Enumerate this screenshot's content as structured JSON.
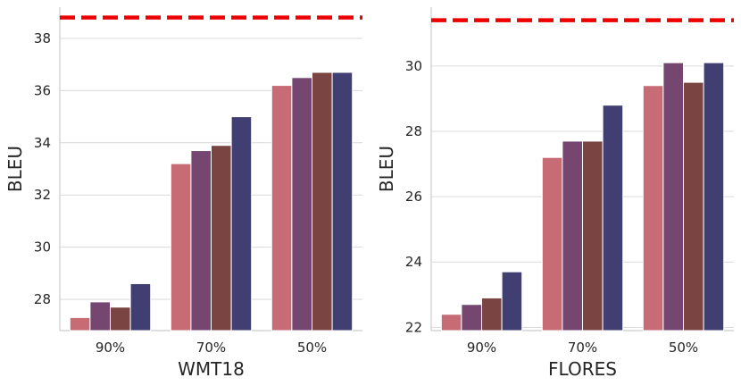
{
  "colors": {
    "series": [
      "#c76b75",
      "#744670",
      "#7a4443",
      "#413f71"
    ],
    "reference": "#ee0000",
    "grid": "#d9d9d9",
    "axis": "#cccccc"
  },
  "chart_data": [
    {
      "type": "bar",
      "xlabel": "WMT18",
      "ylabel": "BLEU",
      "categories": [
        "90%",
        "70%",
        "50%"
      ],
      "ylim": [
        26.8,
        39.2
      ],
      "yticks": [
        28,
        30,
        32,
        34,
        36,
        38
      ],
      "yticklabels": [
        "28",
        "30",
        "32",
        "34",
        "36",
        "38"
      ],
      "reference_line": 38.8,
      "series": [
        {
          "values": [
            27.3,
            33.2,
            36.2
          ]
        },
        {
          "values": [
            27.9,
            33.7,
            36.5
          ]
        },
        {
          "values": [
            27.7,
            33.9,
            36.7
          ]
        },
        {
          "values": [
            28.6,
            35.0,
            36.7
          ]
        }
      ]
    },
    {
      "type": "bar",
      "xlabel": "FLORES",
      "ylabel": "BLEU",
      "categories": [
        "90%",
        "70%",
        "50%"
      ],
      "ylim": [
        21.9,
        31.8
      ],
      "yticks": [
        22,
        24,
        26,
        28,
        30
      ],
      "yticklabels": [
        "22",
        "24",
        "26",
        "28",
        "30"
      ],
      "reference_line": 31.4,
      "series": [
        {
          "values": [
            22.4,
            27.2,
            29.4
          ]
        },
        {
          "values": [
            22.7,
            27.7,
            30.1
          ]
        },
        {
          "values": [
            22.9,
            27.7,
            29.5
          ]
        },
        {
          "values": [
            23.7,
            28.8,
            30.1
          ]
        }
      ]
    }
  ]
}
